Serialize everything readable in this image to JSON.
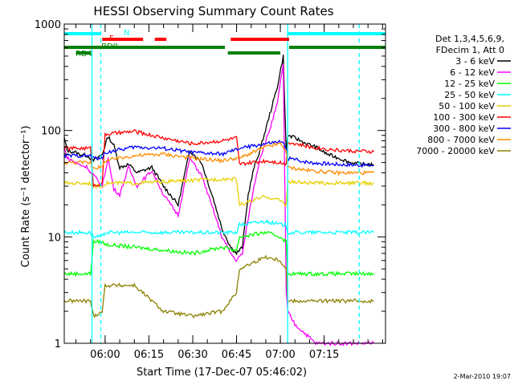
{
  "chart_data": {
    "type": "line",
    "title": "HESSI Observing Summary Count Rates",
    "xlabel": "Start Time (17-Dec-07 05:46:02)",
    "ylabel": "Count Rate (s⁻¹ detector⁻¹)",
    "y_scale": "log",
    "ylim": [
      1,
      1000
    ],
    "xlim_minutes": [
      -14,
      96
    ],
    "x_ticks": [
      {
        "label": "06:00",
        "minute": 0
      },
      {
        "label": "06:15",
        "minute": 15
      },
      {
        "label": "06:30",
        "minute": 30
      },
      {
        "label": "06:45",
        "minute": 45
      },
      {
        "label": "07:00",
        "minute": 60
      },
      {
        "label": "07:15",
        "minute": 75
      }
    ],
    "y_ticks": [
      {
        "label": "1",
        "value": 1
      },
      {
        "label": "10",
        "value": 10
      },
      {
        "label": "100",
        "value": 100
      },
      {
        "label": "1000",
        "value": 1000
      }
    ],
    "legend_header": [
      "Det 1,3,4,5,6,9,",
      "FDecim 1, Att 0"
    ],
    "legend_placement": "right",
    "series": [
      {
        "name": "3 - 6 keV",
        "color": "#000000",
        "minutes": [
          -14,
          -13,
          -10,
          -9,
          -6,
          -5,
          -4,
          -1,
          1,
          3,
          5,
          8,
          11,
          16,
          20,
          25,
          29,
          33,
          37,
          40,
          43,
          45,
          47,
          49,
          51,
          53,
          56,
          59,
          61,
          62,
          62.5,
          65,
          69,
          72,
          76,
          80,
          84,
          88,
          92
        ],
        "values": [
          85,
          65,
          62,
          60,
          58,
          55,
          52,
          60,
          88,
          72,
          45,
          48,
          40,
          45,
          30,
          20,
          65,
          50,
          23,
          12,
          8,
          7,
          8,
          25,
          45,
          65,
          130,
          260,
          500,
          60,
          90,
          85,
          75,
          70,
          60,
          55,
          50,
          48,
          48
        ]
      },
      {
        "name": "6 - 12 keV",
        "color": "#ff00ff",
        "minutes": [
          -14,
          -13,
          -10,
          -9,
          -6,
          -5,
          -4,
          -1,
          1,
          3,
          5,
          8,
          11,
          16,
          20,
          25,
          29,
          33,
          37,
          40,
          43,
          45,
          47,
          49,
          51,
          53,
          56,
          59,
          61,
          62,
          62.5,
          65,
          69,
          72,
          76,
          80,
          84,
          88,
          92
        ],
        "values": [
          70,
          55,
          50,
          48,
          45,
          40,
          38,
          30,
          55,
          28,
          25,
          45,
          30,
          42,
          25,
          16,
          55,
          38,
          18,
          10,
          7,
          6,
          7,
          15,
          30,
          55,
          95,
          180,
          430,
          3,
          2,
          1.5,
          1.2,
          1,
          1,
          1,
          1,
          1,
          1
        ]
      },
      {
        "name": "12 - 25 keV",
        "color": "#00ff00",
        "minutes": [
          -14,
          -5,
          -4,
          -1,
          0,
          10,
          20,
          30,
          40,
          45,
          46,
          55,
          60,
          62,
          62.5,
          70,
          80,
          92
        ],
        "values": [
          4.5,
          4.5,
          9,
          9,
          8.5,
          8,
          7.5,
          7,
          8,
          7.5,
          10,
          11,
          10,
          9,
          4.5,
          4.5,
          4.5,
          4.5
        ]
      },
      {
        "name": "25 - 50 keV",
        "color": "#00ffff",
        "minutes": [
          -14,
          -5,
          -4,
          -1,
          0,
          10,
          20,
          30,
          40,
          45,
          46,
          55,
          60,
          62,
          62.5,
          70,
          80,
          92
        ],
        "values": [
          11,
          11,
          10,
          10,
          11,
          11,
          11,
          11,
          11,
          11,
          13,
          14,
          13,
          13,
          11,
          11,
          11,
          11
        ]
      },
      {
        "name": "50 - 100 keV",
        "color": "#e6d000",
        "minutes": [
          -14,
          -5,
          -4,
          -1,
          0,
          10,
          20,
          30,
          40,
          45,
          46,
          55,
          60,
          62,
          62.5,
          70,
          80,
          92
        ],
        "values": [
          32,
          32,
          30,
          30,
          32,
          32,
          33,
          34,
          35,
          35,
          20,
          24,
          22,
          20,
          33,
          32,
          32,
          32
        ]
      },
      {
        "name": "100 - 300 keV",
        "color": "#ff0000",
        "minutes": [
          -14,
          -5,
          -4,
          -1,
          0,
          10,
          20,
          30,
          40,
          45,
          46,
          55,
          60,
          62,
          62.5,
          70,
          80,
          92
        ],
        "values": [
          68,
          68,
          30,
          32,
          92,
          98,
          85,
          75,
          80,
          85,
          48,
          52,
          50,
          48,
          78,
          70,
          65,
          63
        ]
      },
      {
        "name": "300 - 800 keV",
        "color": "#0000ff",
        "minutes": [
          -14,
          -5,
          -4,
          -1,
          0,
          10,
          20,
          30,
          40,
          45,
          46,
          55,
          60,
          62,
          62.5,
          70,
          80,
          92
        ],
        "values": [
          58,
          58,
          55,
          55,
          62,
          70,
          68,
          62,
          60,
          66,
          68,
          75,
          78,
          70,
          55,
          50,
          48,
          47
        ]
      },
      {
        "name": "800 - 7000 keV",
        "color": "#ff8c00",
        "minutes": [
          -14,
          -5,
          -4,
          -1,
          0,
          10,
          20,
          30,
          40,
          45,
          46,
          55,
          60,
          62,
          62.5,
          70,
          80,
          92
        ],
        "values": [
          50,
          50,
          45,
          45,
          52,
          58,
          60,
          55,
          52,
          55,
          55,
          70,
          75,
          65,
          45,
          42,
          40,
          40
        ]
      },
      {
        "name": "7000 - 20000 keV",
        "color": "#8b8000",
        "minutes": [
          -14,
          -5,
          -4,
          -1,
          0,
          10,
          20,
          30,
          40,
          45,
          46,
          55,
          60,
          62,
          62.5,
          70,
          80,
          92
        ],
        "values": [
          2.5,
          2.5,
          1.8,
          2,
          3.5,
          3.5,
          2,
          1.8,
          2,
          3,
          5,
          6.5,
          6,
          5,
          2.5,
          2.5,
          2.5,
          2.5
        ]
      }
    ],
    "state_bars": [
      {
        "label": "N",
        "color": "#00ffff",
        "segments": [
          [
            -14,
            -1.5
          ],
          [
            62.5,
            96
          ]
        ]
      },
      {
        "label": "F",
        "color": "#ff0000",
        "segments": [
          [
            -1,
            13
          ],
          [
            17,
            21
          ],
          [
            43,
            63
          ]
        ]
      },
      {
        "label": "RD0",
        "color": "#008000",
        "segments": [
          [
            -14,
            -1
          ],
          [
            -1,
            41
          ],
          [
            63,
            96
          ]
        ]
      },
      {
        "label": "RD4",
        "color": "#008000",
        "segments": [
          [
            -10,
            -5
          ],
          [
            42,
            60
          ]
        ]
      }
    ],
    "vertical_markers": {
      "solid_cyan_minutes": [
        -4.5,
        62.5
      ],
      "dashed_cyan_minutes": [
        -1.5,
        87
      ]
    }
  },
  "footer": {
    "date": "2-Mar-2010 19:07"
  }
}
